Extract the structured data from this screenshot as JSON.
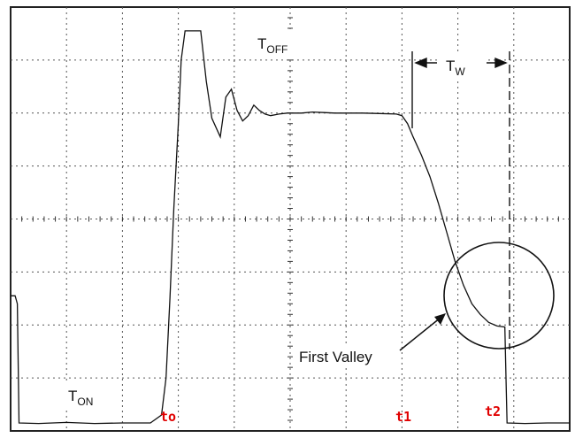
{
  "chart_data": {
    "type": "line",
    "grid": true,
    "xlim": [
      0,
      10
    ],
    "ylim": [
      0,
      8
    ],
    "series": [
      {
        "points": [
          [
            0.0,
            2.55
          ],
          [
            0.08,
            2.55
          ],
          [
            0.12,
            2.4
          ],
          [
            0.15,
            0.15
          ],
          [
            0.5,
            0.14
          ],
          [
            1.0,
            0.16
          ],
          [
            1.5,
            0.14
          ],
          [
            2.0,
            0.15
          ],
          [
            2.5,
            0.15
          ],
          [
            2.7,
            0.3
          ],
          [
            2.78,
            1.0
          ],
          [
            2.85,
            2.5
          ],
          [
            2.92,
            4.2
          ],
          [
            3.0,
            5.8
          ],
          [
            3.05,
            7.0
          ],
          [
            3.12,
            7.55
          ],
          [
            3.4,
            7.55
          ],
          [
            3.5,
            6.6
          ],
          [
            3.6,
            5.9
          ],
          [
            3.75,
            5.55
          ],
          [
            3.85,
            6.3
          ],
          [
            3.95,
            6.45
          ],
          [
            4.05,
            6.05
          ],
          [
            4.15,
            5.85
          ],
          [
            4.25,
            5.95
          ],
          [
            4.35,
            6.15
          ],
          [
            4.45,
            6.05
          ],
          [
            4.55,
            5.98
          ],
          [
            4.65,
            5.95
          ],
          [
            4.8,
            5.98
          ],
          [
            4.95,
            6.0
          ],
          [
            5.2,
            6.0
          ],
          [
            5.4,
            6.02
          ],
          [
            5.6,
            6.01
          ],
          [
            5.8,
            6.0
          ],
          [
            6.0,
            6.0
          ],
          [
            6.3,
            6.0
          ],
          [
            6.6,
            5.99
          ],
          [
            6.9,
            5.98
          ],
          [
            7.0,
            5.95
          ],
          [
            7.1,
            5.8
          ],
          [
            7.2,
            5.55
          ],
          [
            7.35,
            5.2
          ],
          [
            7.5,
            4.8
          ],
          [
            7.65,
            4.3
          ],
          [
            7.8,
            3.75
          ],
          [
            7.95,
            3.2
          ],
          [
            8.1,
            2.75
          ],
          [
            8.25,
            2.4
          ],
          [
            8.4,
            2.2
          ],
          [
            8.55,
            2.05
          ],
          [
            8.7,
            1.98
          ],
          [
            8.84,
            1.96
          ],
          [
            8.86,
            1.0
          ],
          [
            8.88,
            0.15
          ],
          [
            9.2,
            0.14
          ],
          [
            9.6,
            0.15
          ],
          [
            10.0,
            0.15
          ]
        ]
      }
    ],
    "annotations": {
      "t_off": {
        "main": "T",
        "sub": "OFF"
      },
      "t_on": {
        "main": "T",
        "sub": "ON"
      },
      "t_w": {
        "main": "T",
        "sub": "W"
      },
      "first_valley": "First Valley",
      "time_markers": [
        "to",
        "t1",
        "t2"
      ]
    }
  }
}
